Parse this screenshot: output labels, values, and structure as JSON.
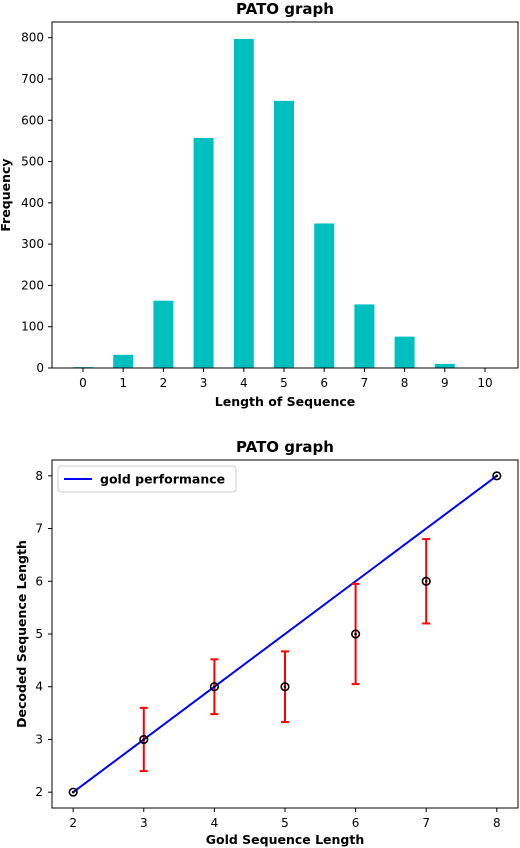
{
  "chart_data": [
    {
      "type": "bar",
      "title": "PATO graph",
      "xlabel": "Length of Sequence",
      "ylabel": "Frequency",
      "categories": [
        "0",
        "1",
        "2",
        "3",
        "4",
        "5",
        "6",
        "7",
        "8",
        "9",
        "10"
      ],
      "values": [
        2,
        32,
        163,
        557,
        797,
        647,
        350,
        154,
        76,
        10,
        0
      ],
      "ylim": [
        0,
        838
      ],
      "yticks": [
        0,
        100,
        200,
        300,
        400,
        500,
        600,
        700,
        800
      ],
      "bar_color": "#00bfbf",
      "grid": false
    },
    {
      "type": "line",
      "title": "PATO graph",
      "xlabel": "Gold Sequence Length",
      "ylabel": "Decoded Sequence Length",
      "xlim": [
        1.7,
        8.3
      ],
      "ylim": [
        1.7,
        8.3
      ],
      "xticks": [
        2,
        3,
        4,
        5,
        6,
        7,
        8
      ],
      "yticks": [
        2,
        3,
        4,
        5,
        6,
        7,
        8
      ],
      "series": [
        {
          "name": "gold performance",
          "kind": "line",
          "color": "#0000ff",
          "x": [
            2,
            8
          ],
          "y": [
            2,
            8
          ]
        },
        {
          "kind": "errorbar",
          "marker_color": "#000000",
          "errorbar_color": "#ff0000",
          "x": [
            2,
            3,
            4,
            5,
            6,
            7,
            8
          ],
          "y": [
            2,
            3,
            4,
            4,
            5,
            6,
            8
          ],
          "err_low": [
            0,
            0.6,
            0.52,
            0.67,
            0.95,
            0.8,
            0
          ],
          "err_high": [
            0,
            0.6,
            0.52,
            0.67,
            0.95,
            0.8,
            0
          ]
        }
      ],
      "legend": "top-left",
      "grid": false
    }
  ]
}
